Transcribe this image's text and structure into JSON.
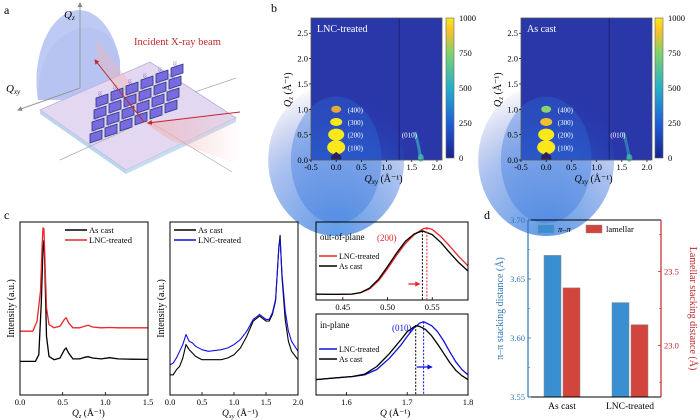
{
  "panel_labels": {
    "a": "a",
    "b": "b",
    "c": "c",
    "d": "d"
  },
  "panel_a": {
    "axis_qz": "Q",
    "axis_qz_sub": "z",
    "axis_qxy": "Q",
    "axis_qxy_sub": "xy",
    "beam_label": "Incident X-ray beam",
    "colors": {
      "beam": "#c0272d",
      "substrate": "#d9d2ef",
      "molecule": "#6a5acd",
      "ewald": "#aab8f0"
    }
  },
  "chart_data": [
    {
      "id": "b-left",
      "type": "heatmap",
      "title": "LNC-treated",
      "xlabel": "Q",
      "xlabel_sub": "xy",
      "xlabel_unit": " (Å⁻¹)",
      "ylabel": "Q",
      "ylabel_sub": "z",
      "ylabel_unit": " (Å⁻¹)",
      "xlim": [
        -0.5,
        2.1
      ],
      "ylim": [
        0,
        2.8
      ],
      "xticks": [
        "-0.5",
        "0.0",
        "0.5",
        "1.0",
        "1.5",
        "2.0"
      ],
      "xtick_values": [
        -0.5,
        0.0,
        0.5,
        1.0,
        1.5,
        2.0
      ],
      "yticks": [
        "0.0",
        "0.5",
        "1.0",
        "1.5",
        "2.0",
        "2.5"
      ],
      "ytick_values": [
        0.0,
        0.5,
        1.0,
        1.5,
        2.0,
        2.5
      ],
      "colorbar": {
        "ticks": [
          "0",
          "250",
          "500",
          "750",
          "1000"
        ],
        "range": [
          0,
          1000
        ]
      },
      "peaks": [
        {
          "label": "(100)",
          "qxy": 0.0,
          "qz": 0.25,
          "intensity": 1000
        },
        {
          "label": "(200)",
          "qxy": 0.0,
          "qz": 0.5,
          "intensity": 1000
        },
        {
          "label": "(300)",
          "qxy": 0.0,
          "qz": 0.75,
          "intensity": 950
        },
        {
          "label": "(400)",
          "qxy": 0.0,
          "qz": 1.0,
          "intensity": 780
        },
        {
          "label": "(010)",
          "qxy": 1.68,
          "qz": 0.05,
          "intensity": 450
        }
      ]
    },
    {
      "id": "b-right",
      "type": "heatmap",
      "title": "As cast",
      "xlabel": "Q",
      "xlabel_sub": "xy",
      "xlabel_unit": " (Å⁻¹)",
      "ylabel": "Q",
      "ylabel_sub": "z",
      "ylabel_unit": " (Å⁻¹)",
      "xlim": [
        -0.5,
        2.1
      ],
      "ylim": [
        0,
        2.8
      ],
      "xticks": [
        "-0.5",
        "0.0",
        "0.5",
        "1.0",
        "1.5",
        "2.0"
      ],
      "xtick_values": [
        -0.5,
        0.0,
        0.5,
        1.0,
        1.5,
        2.0
      ],
      "yticks": [
        "0.0",
        "0.5",
        "1.0",
        "1.5",
        "2.0",
        "2.5"
      ],
      "ytick_values": [
        0.0,
        0.5,
        1.0,
        1.5,
        2.0,
        2.5
      ],
      "colorbar": {
        "ticks": [
          "0",
          "250",
          "500",
          "750",
          "1000"
        ],
        "range": [
          0,
          1000
        ]
      },
      "peaks": [
        {
          "label": "(100)",
          "qxy": 0.0,
          "qz": 0.25,
          "intensity": 1000
        },
        {
          "label": "(200)",
          "qxy": 0.0,
          "qz": 0.5,
          "intensity": 1000
        },
        {
          "label": "(300)",
          "qxy": 0.0,
          "qz": 0.75,
          "intensity": 850
        },
        {
          "label": "(400)",
          "qxy": 0.0,
          "qz": 1.0,
          "intensity": 550
        },
        {
          "label": "(010)",
          "qxy": 1.65,
          "qz": 0.05,
          "intensity": 350
        }
      ]
    },
    {
      "id": "c-out-of-plane",
      "type": "line",
      "xlabel": "Q",
      "xlabel_sub": "z",
      "xlabel_unit": " (Å⁻¹)",
      "ylabel": "Intensity (a.u.)",
      "xlim": [
        0.0,
        1.5
      ],
      "xticks": [
        "0.0",
        "0.5",
        "1.0",
        "1.5"
      ],
      "xtick_values": [
        0.0,
        0.5,
        1.0,
        1.5
      ],
      "legend": "top-right",
      "series": [
        {
          "name": "As cast",
          "color": "#000000",
          "x": [
            0.0,
            0.18,
            0.22,
            0.25,
            0.27,
            0.28,
            0.29,
            0.31,
            0.34,
            0.4,
            0.47,
            0.52,
            0.54,
            0.57,
            0.62,
            0.7,
            0.76,
            0.8,
            0.85,
            0.95,
            1.05,
            1.15,
            1.3,
            1.5
          ],
          "y": [
            0.2,
            0.2,
            0.24,
            0.55,
            0.88,
            0.92,
            0.8,
            0.35,
            0.23,
            0.21,
            0.22,
            0.27,
            0.28,
            0.25,
            0.215,
            0.215,
            0.225,
            0.228,
            0.22,
            0.215,
            0.222,
            0.215,
            0.213,
            0.212
          ]
        },
        {
          "name": "LNC-treated",
          "color": "#e8262b",
          "x": [
            0.0,
            0.15,
            0.2,
            0.24,
            0.26,
            0.27,
            0.28,
            0.29,
            0.31,
            0.34,
            0.4,
            0.47,
            0.52,
            0.54,
            0.57,
            0.62,
            0.7,
            0.76,
            0.8,
            0.85,
            0.95,
            1.05,
            1.15,
            1.3,
            1.5
          ],
          "y": [
            0.38,
            0.38,
            0.44,
            0.62,
            0.9,
            0.995,
            0.99,
            0.85,
            0.52,
            0.42,
            0.4,
            0.41,
            0.45,
            0.46,
            0.43,
            0.4,
            0.4,
            0.41,
            0.415,
            0.405,
            0.4,
            0.402,
            0.4,
            0.4,
            0.4
          ]
        }
      ]
    },
    {
      "id": "c-in-plane",
      "type": "line",
      "xlabel": "Q",
      "xlabel_sub": "xy",
      "xlabel_unit": " (Å⁻¹)",
      "ylabel": "Intensity (a.u.)",
      "xlim": [
        0.0,
        2.0
      ],
      "xticks": [
        "0.0",
        "0.5",
        "1.0",
        "1.5",
        "2.0"
      ],
      "xtick_values": [
        0.0,
        0.5,
        1.0,
        1.5,
        2.0
      ],
      "legend": "top-left",
      "series": [
        {
          "name": "As cast",
          "color": "#000000",
          "x": [
            0.0,
            0.05,
            0.1,
            0.15,
            0.2,
            0.25,
            0.3,
            0.35,
            0.4,
            0.5,
            0.6,
            0.8,
            0.9,
            1.0,
            1.1,
            1.2,
            1.3,
            1.4,
            1.5,
            1.55,
            1.6,
            1.65,
            1.7,
            1.72,
            1.75,
            1.8,
            1.85,
            1.9,
            2.0
          ],
          "y": [
            0.12,
            0.12,
            0.15,
            0.17,
            0.22,
            0.3,
            0.27,
            0.25,
            0.23,
            0.21,
            0.21,
            0.21,
            0.22,
            0.24,
            0.28,
            0.35,
            0.44,
            0.47,
            0.44,
            0.44,
            0.48,
            0.56,
            0.88,
            0.95,
            0.7,
            0.45,
            0.32,
            0.26,
            0.21
          ]
        },
        {
          "name": "LNC-treated",
          "color": "#1010e0",
          "x": [
            0.0,
            0.05,
            0.1,
            0.15,
            0.2,
            0.25,
            0.3,
            0.35,
            0.4,
            0.5,
            0.6,
            0.8,
            0.9,
            1.0,
            1.1,
            1.2,
            1.3,
            1.4,
            1.5,
            1.55,
            1.6,
            1.65,
            1.7,
            1.72,
            1.75,
            1.8,
            1.85,
            1.9,
            2.0
          ],
          "y": [
            0.18,
            0.19,
            0.22,
            0.26,
            0.3,
            0.36,
            0.32,
            0.31,
            0.29,
            0.27,
            0.26,
            0.27,
            0.28,
            0.3,
            0.33,
            0.38,
            0.45,
            0.48,
            0.45,
            0.45,
            0.49,
            0.57,
            0.87,
            0.93,
            0.72,
            0.5,
            0.38,
            0.32,
            0.26
          ]
        }
      ]
    },
    {
      "id": "c-zoom-out-of-plane",
      "type": "line",
      "title": "out-of-plane",
      "peak_label": "(200)",
      "xlim": [
        0.42,
        0.59
      ],
      "xticks": [
        "0.45",
        "0.50",
        "0.55"
      ],
      "xtick_values": [
        0.45,
        0.5,
        0.55
      ],
      "legend": "left",
      "peak_positions": {
        "As cast": 0.539,
        "LNC-treated": 0.544
      },
      "series": [
        {
          "name": "LNC-treated",
          "color": "#e8262b",
          "x": [
            0.42,
            0.44,
            0.46,
            0.47,
            0.48,
            0.49,
            0.5,
            0.51,
            0.52,
            0.53,
            0.54,
            0.544,
            0.55,
            0.56,
            0.57,
            0.58,
            0.59
          ],
          "y": [
            0.08,
            0.075,
            0.08,
            0.1,
            0.15,
            0.26,
            0.42,
            0.6,
            0.76,
            0.88,
            0.96,
            0.97,
            0.95,
            0.85,
            0.72,
            0.58,
            0.46
          ]
        },
        {
          "name": "As cast",
          "color": "#000000",
          "x": [
            0.42,
            0.44,
            0.46,
            0.47,
            0.48,
            0.49,
            0.5,
            0.51,
            0.52,
            0.53,
            0.539,
            0.55,
            0.56,
            0.57,
            0.58,
            0.59
          ],
          "y": [
            0.08,
            0.075,
            0.08,
            0.1,
            0.16,
            0.28,
            0.45,
            0.63,
            0.79,
            0.89,
            0.93,
            0.88,
            0.77,
            0.63,
            0.5,
            0.39
          ]
        }
      ]
    },
    {
      "id": "c-zoom-in-plane",
      "type": "line",
      "title": "in-plane",
      "peak_label": "(010)",
      "xlabel": "Q",
      "xlabel_unit": " (Å⁻¹)",
      "xlim": [
        1.55,
        1.8
      ],
      "xticks": [
        "1.6",
        "1.7",
        "1.8"
      ],
      "xtick_values": [
        1.6,
        1.7,
        1.8
      ],
      "legend": "left",
      "peak_positions": {
        "As cast": 1.714,
        "LNC-treated": 1.727
      },
      "series": [
        {
          "name": "LNC-treated",
          "color": "#1010e0",
          "x": [
            1.55,
            1.58,
            1.61,
            1.63,
            1.65,
            1.67,
            1.69,
            1.7,
            1.71,
            1.72,
            1.727,
            1.74,
            1.75,
            1.76,
            1.77,
            1.78,
            1.79,
            1.8
          ],
          "y": [
            0.2,
            0.22,
            0.24,
            0.26,
            0.33,
            0.47,
            0.65,
            0.76,
            0.86,
            0.93,
            0.95,
            0.9,
            0.82,
            0.7,
            0.56,
            0.43,
            0.33,
            0.26
          ]
        },
        {
          "name": "As cast",
          "color": "#000000",
          "x": [
            1.55,
            1.58,
            1.61,
            1.63,
            1.65,
            1.67,
            1.69,
            1.7,
            1.714,
            1.72,
            1.73,
            1.74,
            1.75,
            1.76,
            1.77,
            1.78,
            1.79,
            1.8
          ],
          "y": [
            0.2,
            0.22,
            0.24,
            0.27,
            0.37,
            0.53,
            0.72,
            0.82,
            0.9,
            0.89,
            0.85,
            0.77,
            0.66,
            0.54,
            0.42,
            0.32,
            0.25,
            0.2
          ]
        }
      ]
    },
    {
      "id": "d",
      "type": "bar",
      "categories": [
        "As cast",
        "LNC-treated"
      ],
      "legend": "top",
      "ylabel": "π–π  stacking distance (Å)",
      "ylabel_color": "#2e75b6",
      "ylim": [
        3.55,
        3.7
      ],
      "yticks": [
        "3.55",
        "3.60",
        "3.65",
        "3.70"
      ],
      "ytick_values": [
        3.55,
        3.6,
        3.65,
        3.7
      ],
      "y2label": "Lamellar stacking distance (Å)",
      "y2label_color": "#c0272d",
      "y2lim": [
        22.65,
        23.85
      ],
      "y2ticks": [
        "23.0",
        "23.5"
      ],
      "y2tick_values": [
        23.0,
        23.5
      ],
      "series": [
        {
          "name": "π–π",
          "axis": "left",
          "color": "#3a8fd1",
          "values": [
            3.67,
            3.63
          ]
        },
        {
          "name": "lamellar",
          "axis": "right",
          "color": "#d2453d",
          "values": [
            23.39,
            23.14
          ]
        }
      ]
    }
  ]
}
